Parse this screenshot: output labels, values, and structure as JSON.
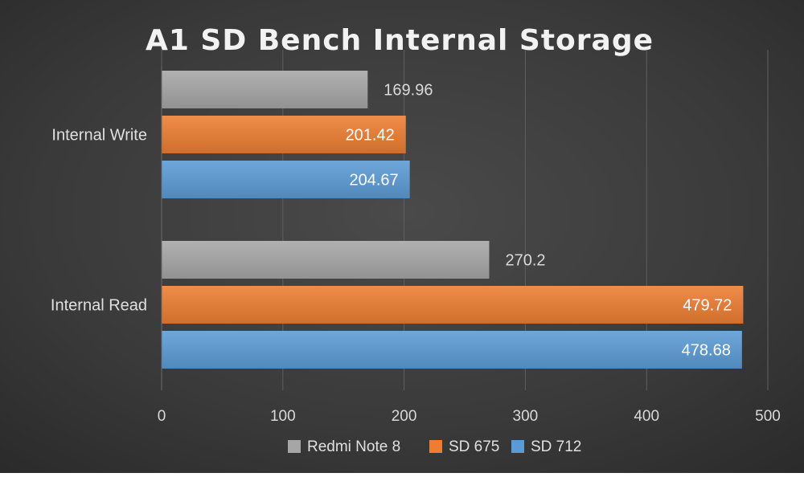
{
  "chart_data": {
    "type": "bar",
    "orientation": "horizontal",
    "title": "A1 SD Bench Internal Storage",
    "xlabel": "",
    "ylabel": "",
    "categories": [
      "Internal Write",
      "Internal Read"
    ],
    "series": [
      {
        "name": "Redmi Note 8",
        "color": "#a6a6a6",
        "values": [
          169.96,
          270.2
        ],
        "labels": [
          "169.96",
          "270.2"
        ]
      },
      {
        "name": "SD 675",
        "color": "#ed7d31",
        "values": [
          201.42,
          479.72
        ],
        "labels": [
          "201.42",
          "479.72"
        ]
      },
      {
        "name": "SD 712",
        "color": "#5b9bd5",
        "values": [
          204.67,
          478.68
        ],
        "labels": [
          "204.67",
          "478.68"
        ]
      }
    ],
    "xlim": [
      0,
      500
    ],
    "xticks": [
      "0",
      "100",
      "200",
      "300",
      "400",
      "500"
    ],
    "grid": "vertical",
    "legend": "bottom",
    "background": "#3a3a3a"
  }
}
